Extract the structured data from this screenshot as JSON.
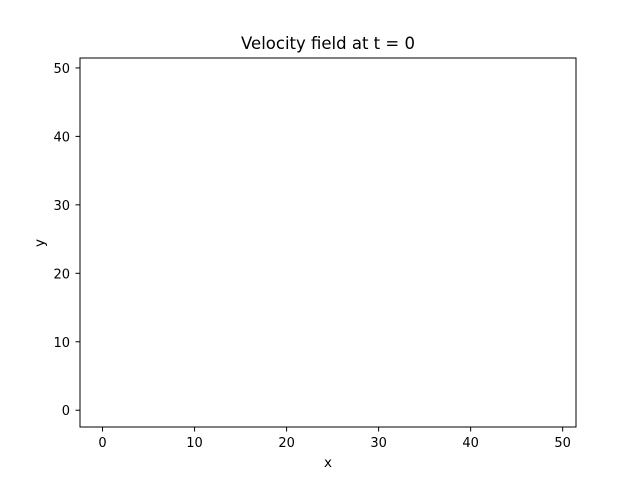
{
  "chart_data": {
    "type": "quiver",
    "title": "Velocity field at t = 0",
    "xlabel": "x",
    "ylabel": "y",
    "xlim": [
      -2.45,
      51.45
    ],
    "ylim": [
      -2.45,
      51.45
    ],
    "xticks": [
      0,
      10,
      20,
      30,
      40,
      50
    ],
    "yticks": [
      0,
      10,
      20,
      30,
      40,
      50
    ],
    "xtick_labels": [
      "0",
      "10",
      "20",
      "30",
      "40",
      "50"
    ],
    "ytick_labels": [
      "0",
      "10",
      "20",
      "30",
      "40",
      "50"
    ],
    "grid": false,
    "legend": null,
    "series": []
  }
}
